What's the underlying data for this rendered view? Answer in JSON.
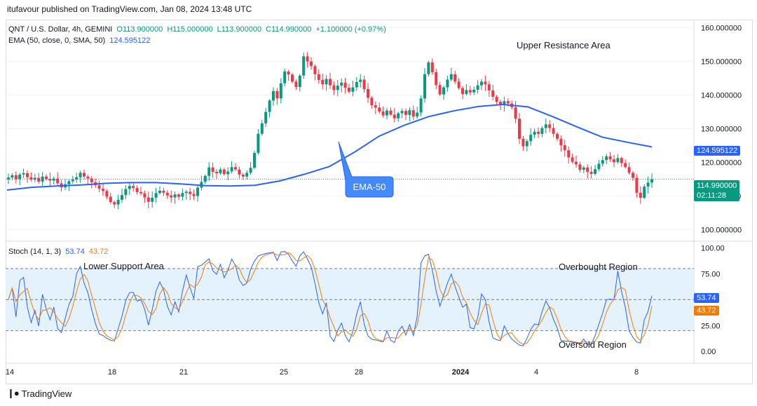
{
  "publisher_text": "itufavour published on TradingView.com, Jan 08, 2024 13:48 UTC",
  "legend": {
    "symbol": "QNT / U.S. Dollar, 4h, GEMINI",
    "open": "O113.900000",
    "high": "H115.000000",
    "low": "L113.900000",
    "close": "C114.990000",
    "change": "+1.100000 (+0.97%)",
    "ema_label": "EMA (50, close, 0, SMA, 50)",
    "ema_value": "124.595122",
    "stoch_label": "Stoch (14, 1, 3)",
    "stoch_k": "53.74",
    "stoch_d": "43.72"
  },
  "annotations": {
    "upper_resistance": "Upper Resistance Area",
    "lower_support": "Lower Support Area",
    "overbought": "Overbought Region",
    "oversold": "Oversold Region",
    "ema_callout": "EMA-50"
  },
  "price_badges": {
    "ema": "124.595122",
    "close": "114.990000",
    "countdown": "02:11:28"
  },
  "footer": {
    "brand": "TradingView"
  },
  "colors": {
    "up": "#089981",
    "down": "#f23645",
    "ema": "#2962ff",
    "stoch_k": "#2962ff",
    "stoch_d": "#f57c00",
    "band": "#e3f2fd"
  },
  "chart_data": [
    {
      "type": "candlestick",
      "title": "QNT / U.S. Dollar, 4h, GEMINI",
      "x_ticks": [
        "14",
        "18",
        "21",
        "25",
        "28",
        "2024",
        "4",
        "8"
      ],
      "y_ticks": [
        "160.000000",
        "150.000000",
        "140.000000",
        "130.000000",
        "120.000000",
        "110.000000",
        "100.000000"
      ],
      "ylim": [
        97,
        162
      ],
      "close_series": [
        115.5,
        116.2,
        115.0,
        116.4,
        116.8,
        115.6,
        114.9,
        115.4,
        114.3,
        115.8,
        115.1,
        114.6,
        115.2,
        113.8,
        112.6,
        113.5,
        114.4,
        114.9,
        115.6,
        116.9,
        115.8,
        115.2,
        114.1,
        113.2,
        112.2,
        111.5,
        109.8,
        108.2,
        107.5,
        108.9,
        110.3,
        112.1,
        113.0,
        112.4,
        111.2,
        110.8,
        109.6,
        108.3,
        109.5,
        110.9,
        111.6,
        111.0,
        110.2,
        109.6,
        110.5,
        109.8,
        110.9,
        111.3,
        110.6,
        110.0,
        112.5,
        114.2,
        116.0,
        118.5,
        117.2,
        116.8,
        117.9,
        116.5,
        117.3,
        118.6,
        117.9,
        116.4,
        115.8,
        116.9,
        118.4,
        122.8,
        128.5,
        131.6,
        135.0,
        138.4,
        141.2,
        139.0,
        143.5,
        147.0,
        146.1,
        144.0,
        142.4,
        145.8,
        151.5,
        150.0,
        148.6,
        146.2,
        144.5,
        143.2,
        144.8,
        142.9,
        141.5,
        142.8,
        143.7,
        142.2,
        141.0,
        142.3,
        143.9,
        144.6,
        141.8,
        139.2,
        137.0,
        136.3,
        135.1,
        134.0,
        135.4,
        134.2,
        133.1,
        134.6,
        135.3,
        134.1,
        135.5,
        133.6,
        134.8,
        139.0,
        146.2,
        149.7,
        146.8,
        143.0,
        140.2,
        142.3,
        144.6,
        146.2,
        144.0,
        142.1,
        140.3,
        141.5,
        140.8,
        141.6,
        142.9,
        144.0,
        143.2,
        141.4,
        139.5,
        138.0,
        137.1,
        138.2,
        137.5,
        136.4,
        133.0,
        127.0,
        124.8,
        126.3,
        128.2,
        129.1,
        128.5,
        130.2,
        131.3,
        130.2,
        128.5,
        127.0,
        125.1,
        123.6,
        121.5,
        120.2,
        119.4,
        117.8,
        118.5,
        117.2,
        116.6,
        118.0,
        119.6,
        120.7,
        121.8,
        120.9,
        120.1,
        121.3,
        119.8,
        118.6,
        116.9,
        115.4,
        111.0,
        109.5,
        112.8,
        114.0,
        114.99
      ],
      "ema50": [
        111.8,
        112.6,
        113.0,
        113.3,
        113.8,
        114.0,
        114.0,
        113.6,
        113.1,
        113.0,
        113.2,
        114.5,
        116.5,
        118.8,
        123.0,
        127.8,
        131.0,
        133.6,
        135.3,
        136.6,
        137.2,
        136.5,
        133.6,
        130.5,
        127.5,
        126.0,
        124.6
      ],
      "stoch_k_last": 53.74,
      "stoch_d_last": 43.72,
      "stoch_ylim": [
        -10,
        105
      ],
      "stoch_ticks": [
        "100.00",
        "75.00",
        "25.00",
        "0.00"
      ],
      "stoch_levels": [
        80,
        50,
        20
      ]
    }
  ]
}
